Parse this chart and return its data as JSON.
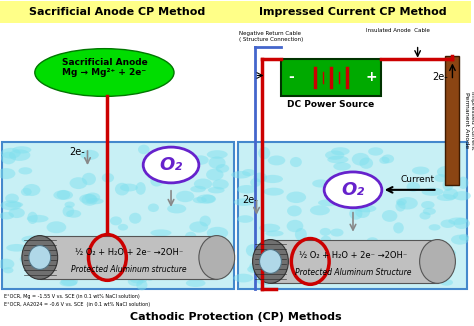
{
  "title_left": "Sacrificial Anode CP Method",
  "title_right": "Impressed Current CP Method",
  "caption": "Cathodic Protection (CP) Methods",
  "left_footnote1": "E°OCR, Mg = -1.55 V vs. SCE (in 0.1 wt% NaCl solution)",
  "left_footnote2": "E°OCR, AA2024 = -0.6 V vs. SCE  (in 0.1 wt% NaCl solution)",
  "anode_label": "Sacrificial Anode\nMg → Mg²⁺ + 2e⁻",
  "pipe_reaction": "½ O₂ + H₂O + 2e⁻ →2OH⁻",
  "pipe_label_left": "Protected Aluminum structure",
  "pipe_label_right": "Protected Aluminum Structure",
  "o2_label": "O₂",
  "two_e": "2e-",
  "dc_label": "DC Power Source",
  "neg_cable_label": "Negative Return Cable\n( Structure Connection)",
  "ins_cable_label": "Insulated Anode  Cable",
  "anode_right_label": "Impressed Current\nPermanent Anode",
  "current_label": "Current",
  "bg_color": "#ffffff",
  "water_color": "#c8f0f5",
  "title_bg_left": "#ffff88",
  "title_bg_right": "#ffff88",
  "anode_bg": "#00dd00",
  "dc_bg": "#00aa00",
  "pipe_body_color": "#c0c0c0",
  "pipe_cap_color": "#707070",
  "pipe_inner_color": "#b0d8e8",
  "red_wire": "#cc0000",
  "blue_wire": "#4466cc",
  "perm_anode_color": "#8B4513",
  "o2_ellipse_color": "#6622cc",
  "water_border": "#4488cc",
  "water_blob": "#80e0ee"
}
